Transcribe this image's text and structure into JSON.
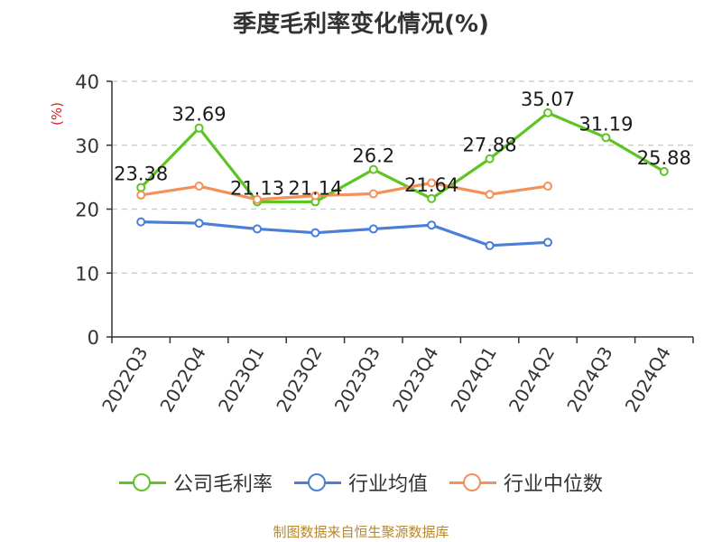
{
  "chart_data": {
    "type": "line",
    "title": "季度毛利率变化情况(%)",
    "ylabel": "(%)",
    "xlabel": "",
    "ylim": [
      0,
      40
    ],
    "yticks": [
      0,
      10,
      20,
      30,
      40
    ],
    "categories": [
      "2022Q3",
      "2022Q4",
      "2023Q1",
      "2023Q2",
      "2023Q3",
      "2023Q4",
      "2024Q1",
      "2024Q2",
      "2024Q3",
      "2024Q4"
    ],
    "grid": true,
    "legend_position": "bottom",
    "series": [
      {
        "name": "公司毛利率",
        "color": "#5ec424",
        "show_labels": true,
        "values": [
          23.38,
          32.69,
          21.13,
          21.14,
          26.2,
          21.64,
          27.88,
          35.07,
          31.19,
          25.88
        ]
      },
      {
        "name": "行业均值",
        "color": "#4a7fd9",
        "show_labels": false,
        "values": [
          18.0,
          17.8,
          16.9,
          16.3,
          16.9,
          17.5,
          14.3,
          14.8,
          null,
          null
        ]
      },
      {
        "name": "行业中位数",
        "color": "#f4905a",
        "show_labels": false,
        "values": [
          22.2,
          23.6,
          21.5,
          22.1,
          22.4,
          24.1,
          22.3,
          23.6,
          null,
          null
        ]
      }
    ]
  },
  "source": "制图数据来自恒生聚源数据库"
}
